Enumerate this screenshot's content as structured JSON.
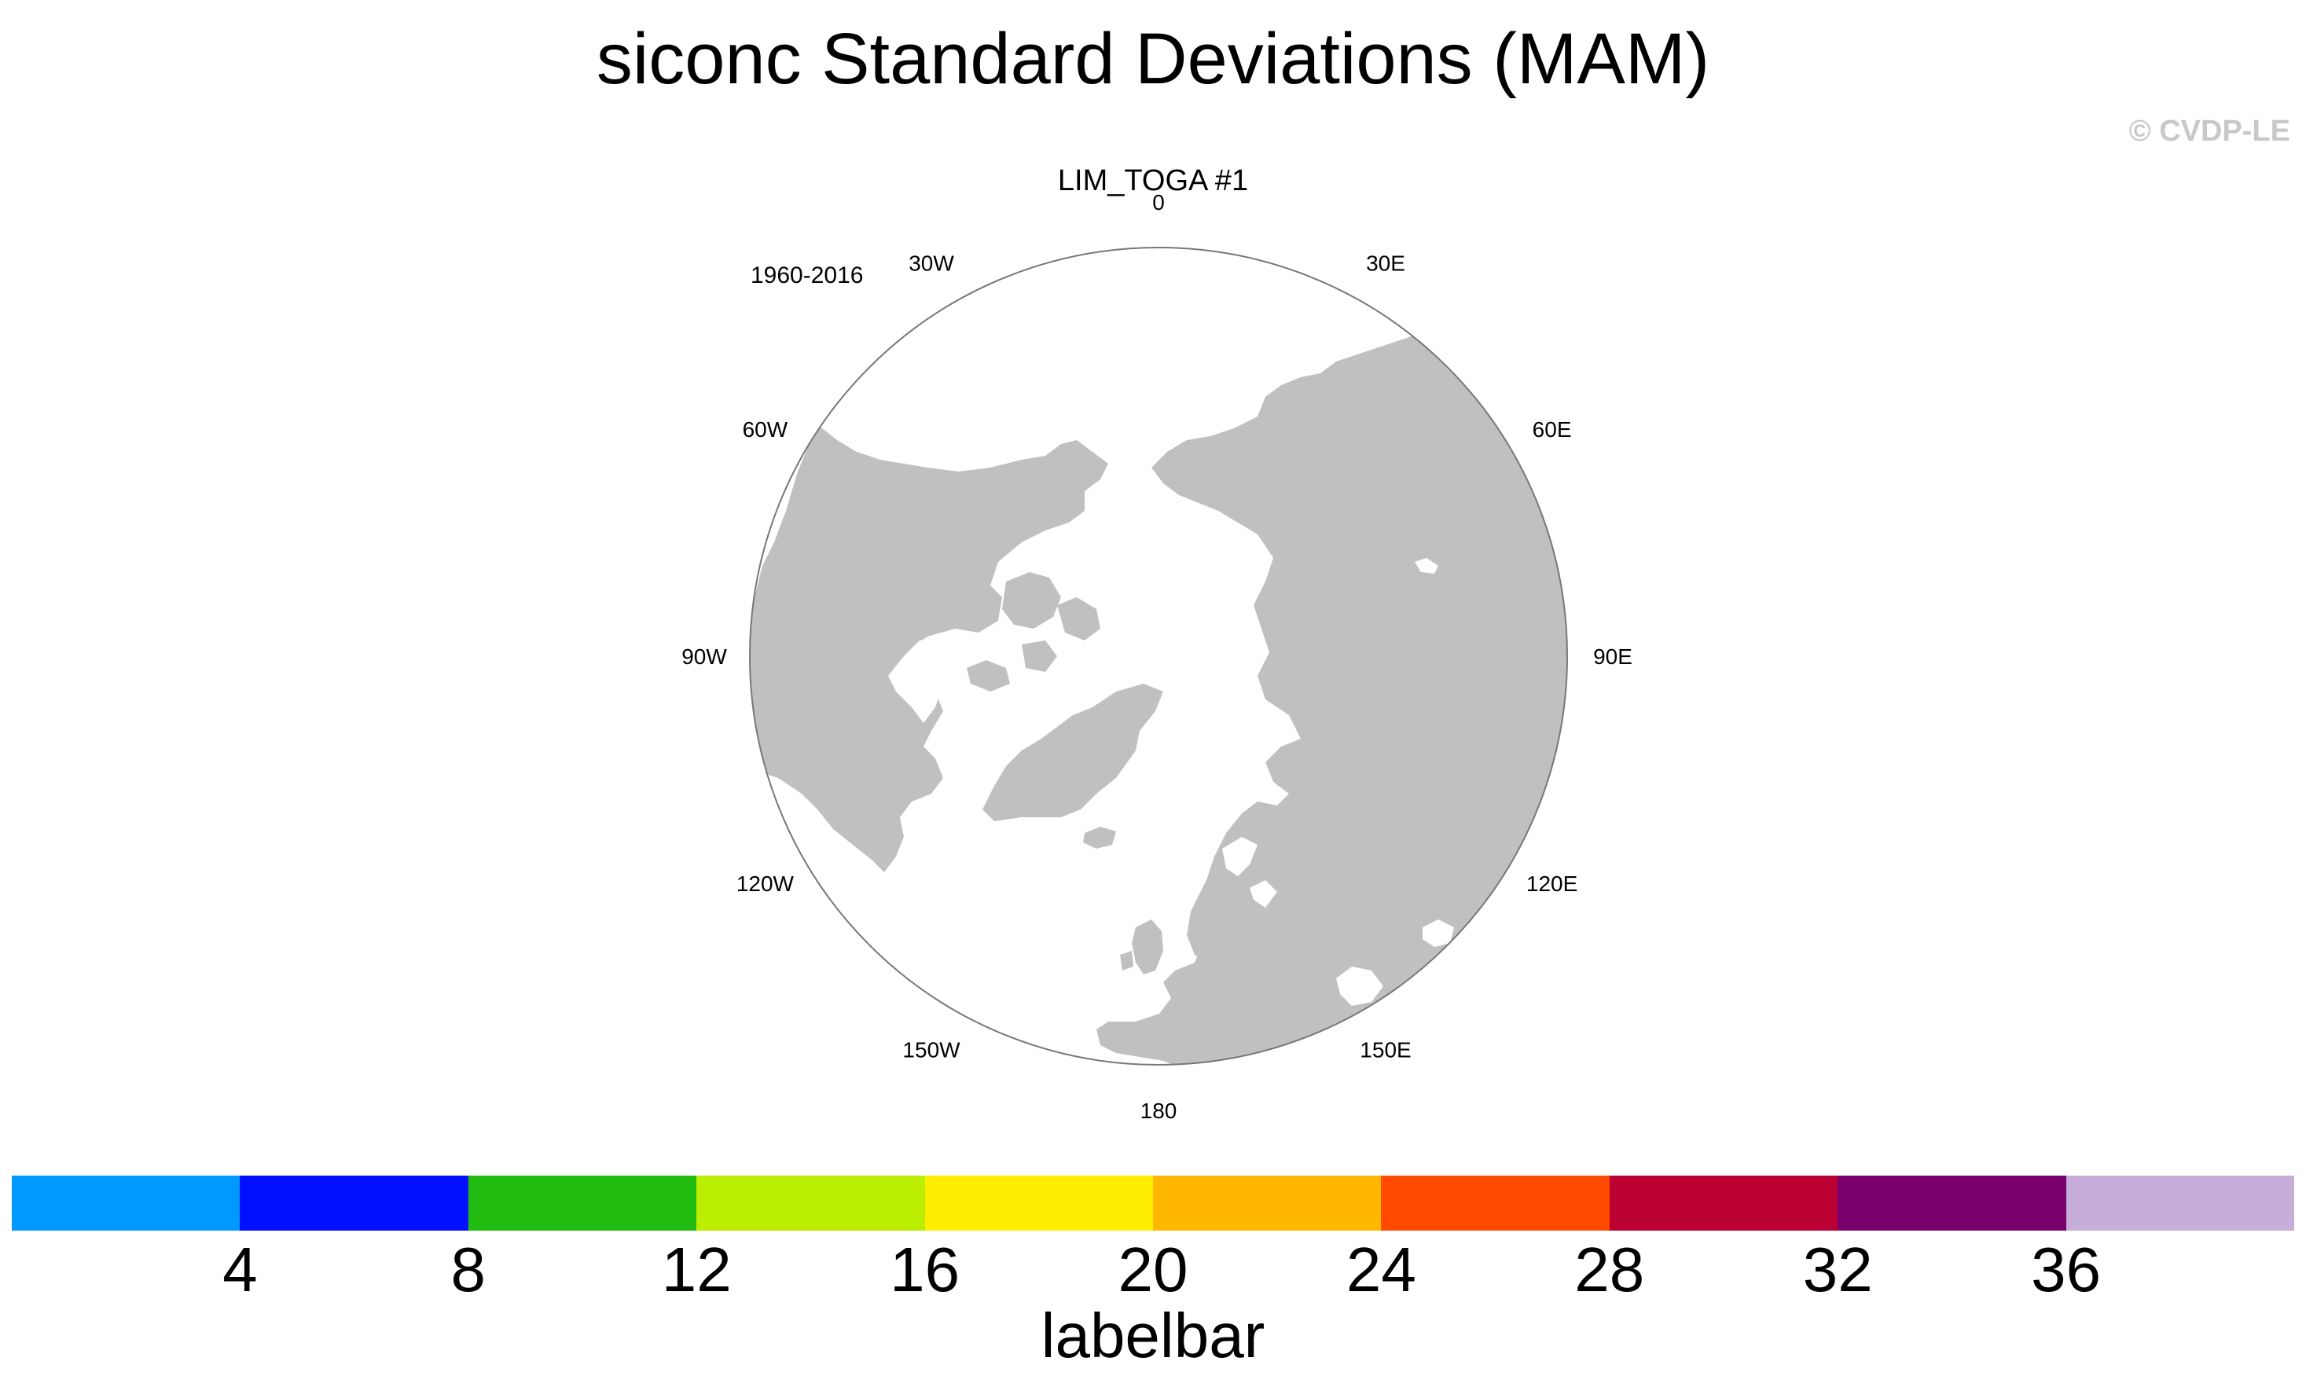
{
  "title": "siconc Standard Deviations (MAM)",
  "watermark": "© CVDP-LE",
  "panel": {
    "label": "LIM_TOGA #1",
    "period": "1960-2016",
    "longitude_labels": [
      {
        "lon": 180,
        "text": "180"
      },
      {
        "lon": 150,
        "text": "150E"
      },
      {
        "lon": 120,
        "text": "120E"
      },
      {
        "lon": 90,
        "text": "90E"
      },
      {
        "lon": 60,
        "text": "60E"
      },
      {
        "lon": 30,
        "text": "30E"
      },
      {
        "lon": 0,
        "text": "0"
      },
      {
        "lon": -30,
        "text": "30W"
      },
      {
        "lon": -60,
        "text": "60W"
      },
      {
        "lon": -90,
        "text": "90W"
      },
      {
        "lon": -120,
        "text": "120W"
      },
      {
        "lon": -150,
        "text": "150W"
      }
    ],
    "colors": {
      "land": "#c0c0c0",
      "ocean": "#ffffff",
      "outline": "#777777"
    }
  },
  "labelbar": {
    "title": "labelbar",
    "colors": [
      "#0099ff",
      "#0010ff",
      "#22bb10",
      "#bbee00",
      "#ffee00",
      "#ffb700",
      "#ff4a00",
      "#bb0033",
      "#7a006e",
      "#c6aed8"
    ],
    "ticks": [
      "4",
      "8",
      "12",
      "16",
      "20",
      "24",
      "28",
      "32",
      "36"
    ]
  }
}
